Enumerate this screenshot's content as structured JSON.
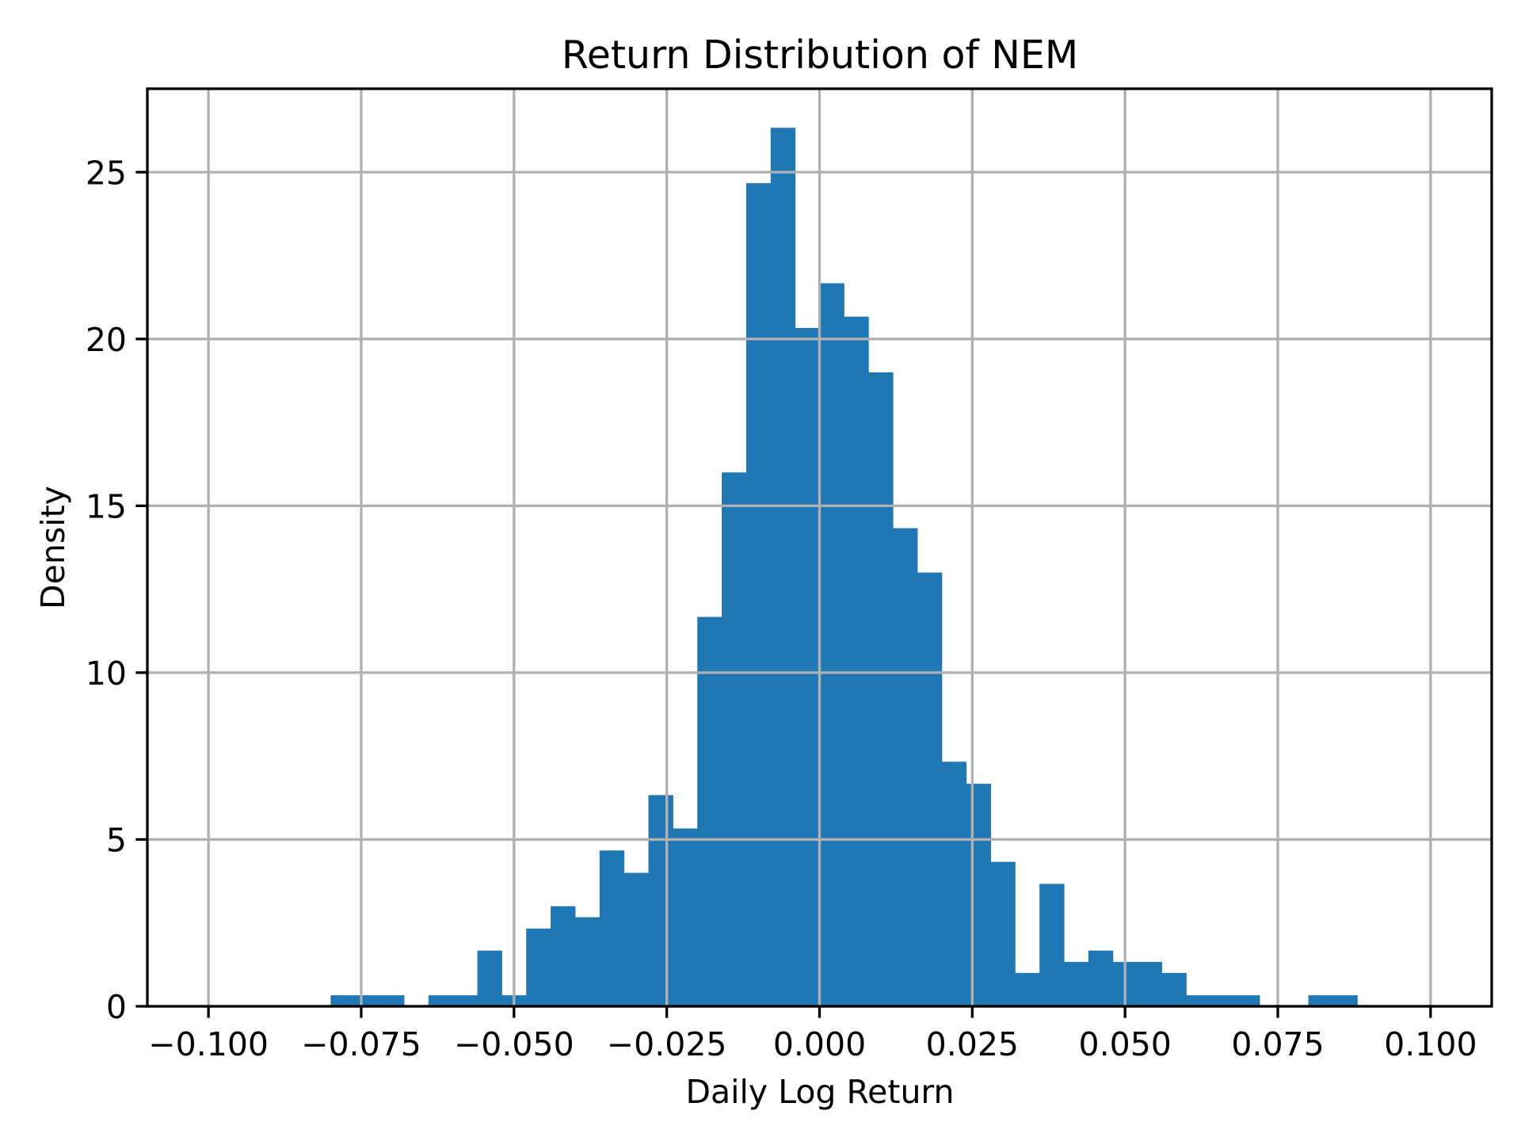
{
  "chart_data": {
    "type": "bar",
    "title": "Return Distribution of NEM",
    "xlabel": "Daily Log Return",
    "ylabel": "Density",
    "xlim": [
      -0.11,
      0.11
    ],
    "ylim": [
      0,
      27.5
    ],
    "grid": true,
    "bar_color": "#1f77b4",
    "bin_start": -0.08,
    "bin_width": 0.004,
    "values": [
      0.33,
      0.33,
      0.33,
      0,
      0.33,
      0.33,
      1.67,
      0.33,
      2.33,
      3.0,
      2.67,
      4.67,
      4.0,
      6.33,
      5.33,
      11.67,
      16.0,
      24.67,
      26.33,
      20.33,
      21.67,
      20.67,
      19.0,
      14.33,
      13.0,
      7.33,
      6.67,
      4.33,
      1.0,
      3.67,
      1.33,
      1.67,
      1.33,
      1.33,
      1.0,
      0.33,
      0.33,
      0.33,
      0,
      0,
      0.33,
      0.33
    ],
    "xticks": [
      -0.1,
      -0.075,
      -0.05,
      -0.025,
      0,
      0.025,
      0.05,
      0.075,
      0.1
    ],
    "xtick_labels": [
      "−0.100",
      "−0.075",
      "−0.050",
      "−0.025",
      "0.000",
      "0.025",
      "0.050",
      "0.075",
      "0.100"
    ],
    "yticks": [
      0,
      5,
      10,
      15,
      20,
      25
    ],
    "ytick_labels": [
      "0",
      "5",
      "10",
      "15",
      "20",
      "25"
    ]
  }
}
